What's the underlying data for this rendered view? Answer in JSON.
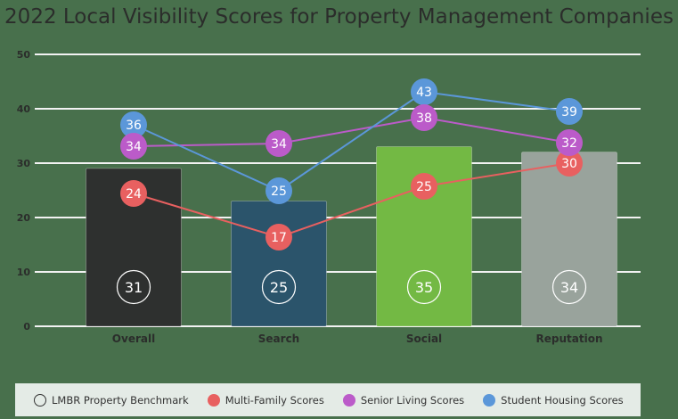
{
  "title": "2022 Local Visibility Scores for Property Management Companies",
  "colors": {
    "background": "#48704c",
    "gridline": "#f0f0f0",
    "multi_family": "#e86060",
    "senior_living": "#bb5bc9",
    "student_housing": "#5b97d9",
    "legend_bg": "#e4ebe6"
  },
  "legend": [
    {
      "label": "LMBR Property Benchmark",
      "style": "outline",
      "color": "#333333"
    },
    {
      "label": "Multi-Family Scores",
      "style": "filled",
      "color": "#e86060"
    },
    {
      "label": "Senior Living Scores",
      "style": "filled",
      "color": "#bb5bc9"
    },
    {
      "label": "Student Housing Scores",
      "style": "filled",
      "color": "#5b97d9"
    }
  ],
  "chart_data": {
    "type": "bar",
    "title": "2022 Local Visibility Scores for Property Management Companies",
    "xlabel": "",
    "ylabel": "",
    "ylim": [
      0,
      50
    ],
    "yticks": [
      0,
      10,
      20,
      30,
      40,
      50
    ],
    "grid": true,
    "legend_position": "bottom",
    "categories": [
      "Overall",
      "Search",
      "Social",
      "Reputation"
    ],
    "bar_colors": [
      "#2e302f",
      "#2b546b",
      "#73b944",
      "#99a39c"
    ],
    "series": [
      {
        "name": "LMBR Property Benchmark",
        "type": "bar",
        "values": [
          31,
          25,
          35,
          34
        ]
      },
      {
        "name": "Multi-Family Scores",
        "type": "line",
        "color": "#e86060",
        "values": [
          24,
          17,
          25,
          30
        ]
      },
      {
        "name": "Senior Living Scores",
        "type": "line",
        "color": "#bb5bc9",
        "values": [
          34,
          34,
          38,
          32
        ]
      },
      {
        "name": "Student Housing Scores",
        "type": "line",
        "color": "#5b97d9",
        "values": [
          36,
          25,
          43,
          39
        ]
      }
    ]
  }
}
